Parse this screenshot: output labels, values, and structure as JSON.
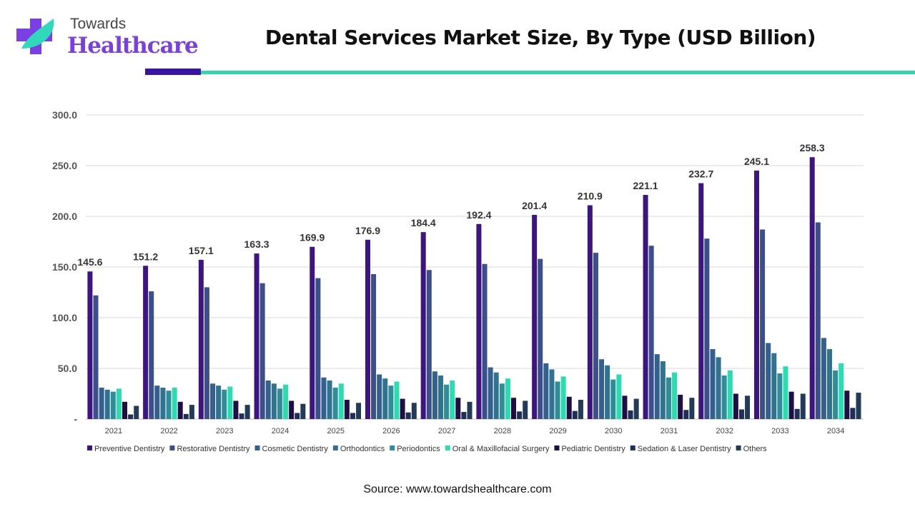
{
  "logo": {
    "line1": "Towards",
    "line2": "Healthcare"
  },
  "title": "Dental Services Market Size, By Type (USD Billion)",
  "source": "Source: www.towardshealthcare.com",
  "chart_data": {
    "type": "bar",
    "title": "Dental Services Market Size, By Type (USD Billion)",
    "xlabel": "",
    "ylabel": "",
    "ylim": [
      0,
      300
    ],
    "yticks": [
      "-",
      "50.0",
      "100.0",
      "150.0",
      "200.0",
      "250.0",
      "300.0"
    ],
    "grid": true,
    "legend": "bottom",
    "categories": [
      "2021",
      "2022",
      "2023",
      "2024",
      "2025",
      "2026",
      "2027",
      "2028",
      "2029",
      "2030",
      "2031",
      "2032",
      "2033",
      "2034"
    ],
    "series": [
      {
        "name": "Preventive Dentistry",
        "color": "#3d1580",
        "labeled": true,
        "values": [
          145.6,
          151.2,
          157.1,
          163.3,
          169.9,
          176.9,
          184.4,
          192.4,
          201.4,
          210.9,
          221.1,
          232.7,
          245.1,
          258.3
        ]
      },
      {
        "name": "Restorative Dentistry",
        "color": "#3b4f8a",
        "values": [
          122,
          126,
          130,
          134,
          139,
          143,
          147,
          153,
          158,
          164,
          171,
          178,
          187,
          194
        ]
      },
      {
        "name": "Cosmetic Dentistry",
        "color": "#33608c",
        "values": [
          31,
          33,
          35,
          38,
          41,
          44,
          47,
          51,
          55,
          59,
          64,
          69,
          75,
          80
        ]
      },
      {
        "name": "Orthodontics",
        "color": "#2f7390",
        "values": [
          29,
          31,
          33,
          35,
          38,
          40,
          43,
          46,
          49,
          53,
          57,
          61,
          65,
          69
        ]
      },
      {
        "name": "Periodontics",
        "color": "#2e8d98",
        "values": [
          27,
          28,
          29,
          30,
          31,
          33,
          34,
          35,
          37,
          39,
          41,
          43,
          45,
          48
        ]
      },
      {
        "name": "Oral & Maxillofacial Surgery",
        "color": "#2bdcb0",
        "values": [
          30,
          31,
          32,
          34,
          35,
          37,
          38,
          40,
          42,
          44,
          46,
          48,
          52,
          55
        ]
      },
      {
        "name": "Pediatric Dentistry",
        "color": "#1e0f45",
        "values": [
          17,
          17,
          18,
          18,
          19,
          20,
          21,
          21,
          22,
          23,
          24,
          25,
          27,
          28
        ]
      },
      {
        "name": "Sedation & Laser Dentistry",
        "color": "#1f2f5a",
        "values": [
          4.5,
          5,
          5.5,
          6,
          6,
          6.5,
          7,
          7.5,
          8,
          8.5,
          9,
          9.5,
          10,
          11
        ]
      },
      {
        "name": "Others",
        "color": "#223b56",
        "values": [
          13,
          14,
          14,
          15,
          16,
          16,
          17,
          18,
          19,
          20,
          21,
          23,
          25,
          26
        ]
      }
    ]
  }
}
